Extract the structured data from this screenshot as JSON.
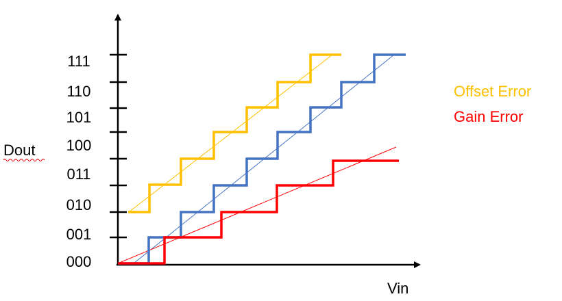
{
  "y_axis_label": "Dout",
  "x_axis_label": "Vin",
  "y_labels": [
    "111",
    "110",
    "101",
    "100",
    "011",
    "010",
    "001",
    "000"
  ],
  "legend": [
    {
      "label": "Offset Error"
    },
    {
      "label": "Gain Error"
    }
  ]
}
